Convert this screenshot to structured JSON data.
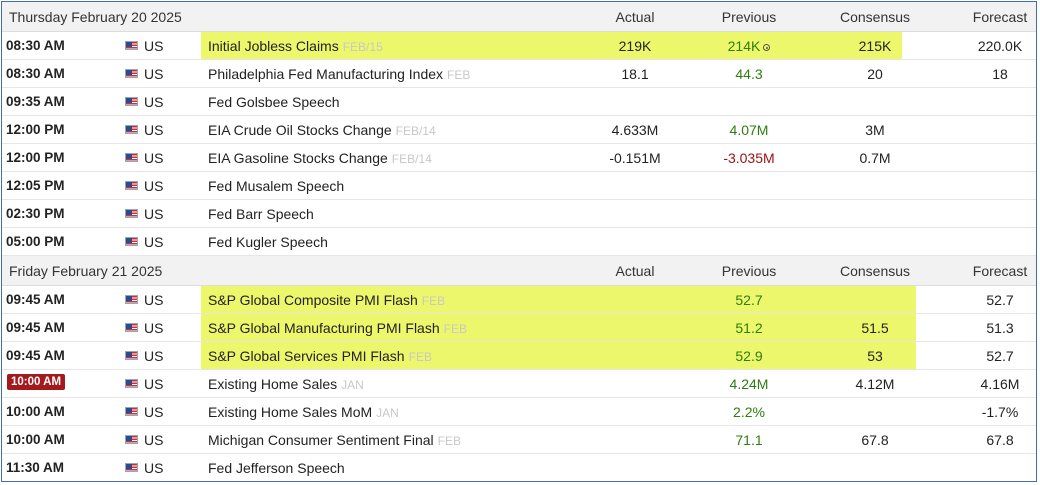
{
  "columns": {
    "actual": "Actual",
    "previous": "Previous",
    "consensus": "Consensus",
    "forecast": "Forecast"
  },
  "days": [
    {
      "title": "Thursday February 20 2025",
      "rows": [
        {
          "time": "08:30 AM",
          "country": "US",
          "event": "Initial Jobless Claims",
          "period": "FEB/15",
          "actual": "219K",
          "previous": "214K",
          "previous_revised": true,
          "previous_color": "green",
          "consensus": "215K",
          "forecast": "220.0K",
          "highlight": true
        },
        {
          "time": "08:30 AM",
          "country": "US",
          "event": "Philadelphia Fed Manufacturing Index",
          "period": "FEB",
          "actual": "18.1",
          "previous": "44.3",
          "previous_color": "green",
          "consensus": "20",
          "forecast": "18"
        },
        {
          "time": "09:35 AM",
          "country": "US",
          "event": "Fed Golsbee Speech",
          "period": "",
          "actual": "",
          "previous": "",
          "consensus": "",
          "forecast": ""
        },
        {
          "time": "12:00 PM",
          "country": "US",
          "event": "EIA Crude Oil Stocks Change",
          "period": "FEB/14",
          "actual": "4.633M",
          "previous": "4.07M",
          "previous_color": "green",
          "consensus": "3M",
          "forecast": ""
        },
        {
          "time": "12:00 PM",
          "country": "US",
          "event": "EIA Gasoline Stocks Change",
          "period": "FEB/14",
          "actual": "-0.151M",
          "previous": "-3.035M",
          "previous_color": "red",
          "consensus": "0.7M",
          "forecast": ""
        },
        {
          "time": "12:05 PM",
          "country": "US",
          "event": "Fed Musalem Speech",
          "period": "",
          "actual": "",
          "previous": "",
          "consensus": "",
          "forecast": ""
        },
        {
          "time": "02:30 PM",
          "country": "US",
          "event": "Fed Barr Speech",
          "period": "",
          "actual": "",
          "previous": "",
          "consensus": "",
          "forecast": ""
        },
        {
          "time": "05:00 PM",
          "country": "US",
          "event": "Fed Kugler Speech",
          "period": "",
          "actual": "",
          "previous": "",
          "consensus": "",
          "forecast": ""
        }
      ]
    },
    {
      "title": "Friday February 21 2025",
      "rows": [
        {
          "time": "09:45 AM",
          "country": "US",
          "event": "S&P Global Composite PMI Flash",
          "period": "FEB",
          "actual": "",
          "previous": "52.7",
          "previous_color": "green",
          "consensus": "",
          "forecast": "52.7",
          "highlight": true
        },
        {
          "time": "09:45 AM",
          "country": "US",
          "event": "S&P Global Manufacturing PMI Flash",
          "period": "FEB",
          "actual": "",
          "previous": "51.2",
          "previous_color": "green",
          "consensus": "51.5",
          "forecast": "51.3",
          "highlight": true
        },
        {
          "time": "09:45 AM",
          "country": "US",
          "event": "S&P Global Services PMI Flash",
          "period": "FEB",
          "actual": "",
          "previous": "52.9",
          "previous_color": "green",
          "consensus": "53",
          "forecast": "52.7",
          "highlight": true
        },
        {
          "time": "10:00 AM",
          "time_badge": true,
          "country": "US",
          "event": "Existing Home Sales",
          "period": "JAN",
          "actual": "",
          "previous": "4.24M",
          "previous_color": "green",
          "consensus": "4.12M",
          "forecast": "4.16M"
        },
        {
          "time": "10:00 AM",
          "country": "US",
          "event": "Existing Home Sales MoM",
          "period": "JAN",
          "actual": "",
          "previous": "2.2%",
          "previous_color": "green",
          "consensus": "",
          "forecast": "-1.7%"
        },
        {
          "time": "10:00 AM",
          "country": "US",
          "event": "Michigan Consumer Sentiment Final",
          "period": "FEB",
          "actual": "",
          "previous": "71.1",
          "previous_color": "green",
          "consensus": "67.8",
          "forecast": "67.8"
        },
        {
          "time": "11:30 AM",
          "country": "US",
          "event": "Fed Jefferson Speech",
          "period": "",
          "actual": "",
          "previous": "",
          "consensus": "",
          "forecast": ""
        }
      ]
    }
  ],
  "colors": {
    "highlight": "#edf76b",
    "green": "#2e7d0f",
    "red": "#9b1212",
    "badge": "#a4191c",
    "border": "#3f6fae"
  },
  "icons": {
    "flag": "us-flag-icon",
    "revised": "revised-icon"
  }
}
